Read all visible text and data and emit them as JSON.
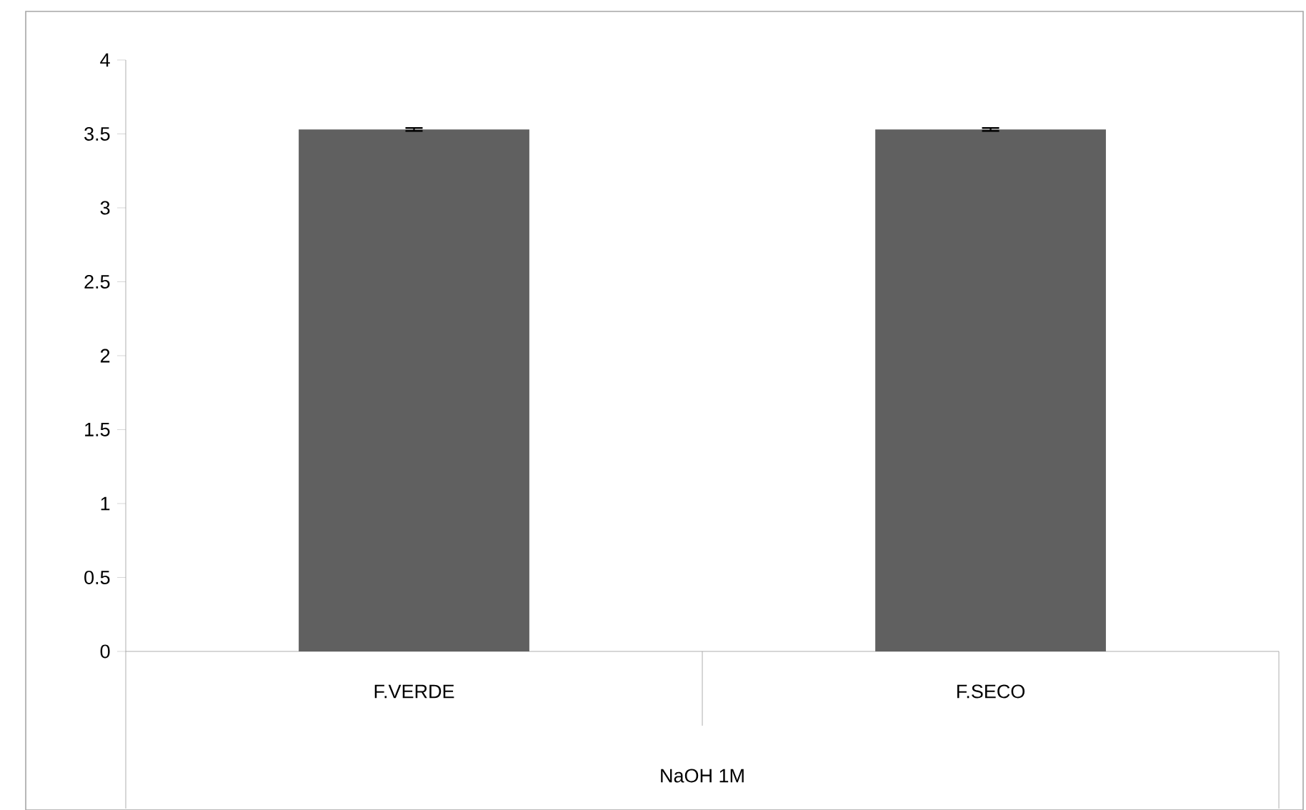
{
  "chart_data": {
    "type": "bar",
    "categories": [
      "F.VERDE",
      "F.SECO"
    ],
    "values": [
      3.53,
      3.53
    ],
    "errors": [
      0.01,
      0.01
    ],
    "color": "#606060",
    "xlabel": "NaOH 1M",
    "ylim": [
      0,
      4
    ],
    "yticks": [
      0,
      0.5,
      1,
      1.5,
      2,
      2.5,
      3,
      3.5,
      4
    ],
    "grid": false
  }
}
